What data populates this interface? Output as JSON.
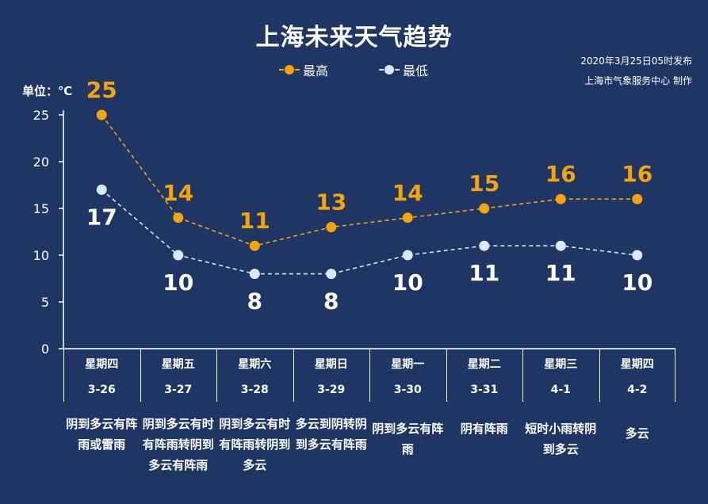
{
  "title": "上海未来天气趋势",
  "publish": {
    "line1": "2020年3月25日05时发布",
    "line2": "上海市气象服务中心  制作"
  },
  "unit_label": "单位：℃",
  "legend": {
    "high": "最高",
    "low": "最低"
  },
  "colors": {
    "high": "#f5a50c",
    "low": "#dce6f5",
    "axis": "#ffffff",
    "background": "#1f3563"
  },
  "days": [
    {
      "weekday": "星期四",
      "date": "3-26",
      "weather": "阴到多云有阵雨或雷雨"
    },
    {
      "weekday": "星期五",
      "date": "3-27",
      "weather": "阴到多云有时有阵雨转阴到多云有阵雨"
    },
    {
      "weekday": "星期六",
      "date": "3-28",
      "weather": "阴到多云有时有阵雨转阴到多云"
    },
    {
      "weekday": "星期日",
      "date": "3-29",
      "weather": "多云到阴转阴到多云有阵雨"
    },
    {
      "weekday": "星期一",
      "date": "3-30",
      "weather": "阴到多云有阵雨"
    },
    {
      "weekday": "星期二",
      "date": "3-31",
      "weather": "阴有阵雨"
    },
    {
      "weekday": "星期三",
      "date": "4-1",
      "weather": "短时小雨转阴到多云"
    },
    {
      "weekday": "星期四",
      "date": "4-2",
      "weather": "多云"
    }
  ],
  "chart_data": {
    "type": "line",
    "categories": [
      "3-26",
      "3-27",
      "3-28",
      "3-29",
      "3-30",
      "3-31",
      "4-1",
      "4-2"
    ],
    "series": [
      {
        "name": "最高",
        "values": [
          25,
          14,
          11,
          13,
          14,
          15,
          16,
          16
        ]
      },
      {
        "name": "最低",
        "values": [
          17,
          10,
          8,
          8,
          10,
          11,
          11,
          10
        ]
      }
    ],
    "ylim": [
      0,
      25
    ],
    "yticks": [
      0,
      5,
      10,
      15,
      20,
      25
    ],
    "ylabel": "单位：℃",
    "grid": false,
    "data_labels": true,
    "line_style": "dashed",
    "legend_position": "top-center"
  }
}
